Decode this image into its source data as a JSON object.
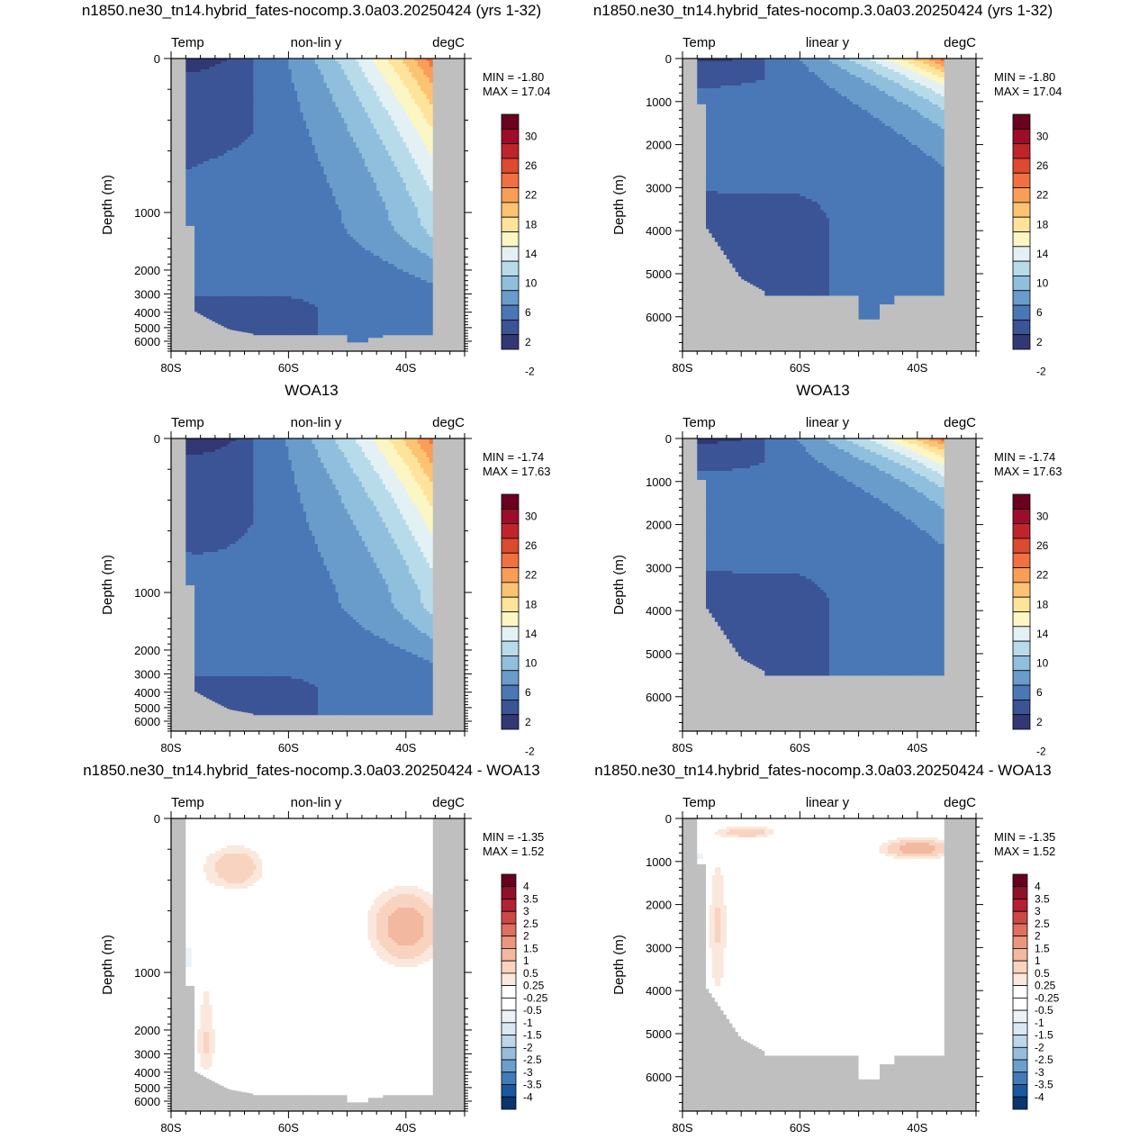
{
  "colors": {
    "land": "#bfbfbf",
    "temp_levels": [
      "#313873",
      "#3b5496",
      "#4a78b6",
      "#6a9ccb",
      "#8fbfdc",
      "#b7dbe9",
      "#e3f1f5",
      "#fbf6c3",
      "#fde49a",
      "#fcc372",
      "#f99e57",
      "#f0713f",
      "#db4a31",
      "#c0242b",
      "#9d0d2a",
      "#6b0020"
    ],
    "diff_levels": [
      "#0a3670",
      "#1a58a2",
      "#3f7dba",
      "#6b9fcd",
      "#97bddc",
      "#bcd6ea",
      "#d9e8f3",
      "#ebf3f9",
      "#ffffff",
      "#ffffff",
      "#fbe8dc",
      "#f8d4c0",
      "#f3b8a0",
      "#eb977f",
      "#de705f",
      "#cc4947",
      "#b52033",
      "#90102b",
      "#67001f"
    ]
  },
  "panels": [
    {
      "name": "model-nonlin",
      "title": "n1850.ne30_tn14.hybrid_fates-nocomp.3.0a03.20250424 (yrs 1-32)",
      "variable": "Temp",
      "ytype": "non-lin y",
      "units": "degC",
      "ylabel": "Depth (m)",
      "min": "MIN =  -1.80",
      "max": "MAX =  17.04",
      "field": "model",
      "scale": "nonlin",
      "colorbar": "temp"
    },
    {
      "name": "model-lin",
      "title": "n1850.ne30_tn14.hybrid_fates-nocomp.3.0a03.20250424 (yrs 1-32)",
      "variable": "Temp",
      "ytype": "linear y",
      "units": "degC",
      "ylabel": "Depth (m)",
      "min": "MIN =  -1.80",
      "max": "MAX =  17.04",
      "field": "model",
      "scale": "linear",
      "colorbar": "temp"
    },
    {
      "name": "obs-nonlin",
      "title": "WOA13",
      "variable": "Temp",
      "ytype": "non-lin y",
      "units": "degC",
      "ylabel": "Depth (m)",
      "min": "MIN =  -1.74",
      "max": "MAX =  17.63",
      "field": "obs",
      "scale": "nonlin",
      "colorbar": "temp"
    },
    {
      "name": "obs-lin",
      "title": "WOA13",
      "variable": "Temp",
      "ytype": "linear y",
      "units": "degC",
      "ylabel": "Depth (m)",
      "min": "MIN =  -1.74",
      "max": "MAX =  17.63",
      "field": "obs",
      "scale": "linear",
      "colorbar": "temp"
    },
    {
      "name": "diff-nonlin",
      "title": "n1850.ne30_tn14.hybrid_fates-nocomp.3.0a03.20250424 - WOA13",
      "variable": "Temp",
      "ytype": "non-lin y",
      "units": "degC",
      "ylabel": "Depth (m)",
      "min": "MIN =  -1.35",
      "max": "MAX =   1.52",
      "field": "diff",
      "scale": "nonlin",
      "colorbar": "diff"
    },
    {
      "name": "diff-lin",
      "title": "n1850.ne30_tn14.hybrid_fates-nocomp.3.0a03.20250424 - WOA13",
      "variable": "Temp",
      "ytype": "linear y",
      "units": "degC",
      "ylabel": "Depth (m)",
      "min": "MIN =  -1.35",
      "max": "MAX =   1.52",
      "field": "diff",
      "scale": "linear",
      "colorbar": "diff"
    }
  ],
  "chart_data": {
    "type": "heatmap",
    "x_axis": {
      "range": [
        "80S",
        "30S"
      ],
      "tick_labels": [
        "80S",
        "60S",
        "40S"
      ],
      "tick_values": [
        -80,
        -60,
        -40
      ]
    },
    "nonlin_y_ticks": [
      0,
      1000,
      2000,
      3000,
      4000,
      5000,
      6000
    ],
    "linear_y_ticks": [
      0,
      1000,
      2000,
      3000,
      4000,
      5000,
      6000
    ],
    "depth_range": [
      0,
      6800
    ],
    "temp_colorbar_labels": [
      "30",
      "26",
      "22",
      "18",
      "14",
      "10",
      "6",
      "2",
      "-2"
    ],
    "diff_colorbar_labels": [
      "4",
      "3.5",
      "3",
      "2.5",
      "2",
      "1.5",
      "1",
      "0.5",
      "0.25",
      "-0.25",
      "-0.5",
      "-1",
      "-1.5",
      "-2",
      "-2.5",
      "-3",
      "-3.5",
      "-4"
    ],
    "ocean_floor": [
      [
        -76,
        3900
      ],
      [
        -74,
        4400
      ],
      [
        -72,
        4900
      ],
      [
        -70,
        5100
      ],
      [
        -66,
        5400
      ],
      [
        -62,
        5500
      ],
      [
        -56,
        5500
      ],
      [
        -48,
        5500
      ],
      [
        -40,
        5500
      ],
      [
        -36,
        5500
      ]
    ],
    "series": [
      {
        "field": "model",
        "surface_temperature_at_latitude": {
          "lat": [
            -78,
            -70,
            -60,
            -50,
            -40,
            -35
          ],
          "value": [
            -1.8,
            -1.0,
            2.5,
            6.0,
            14.5,
            17.04
          ]
        }
      },
      {
        "field": "obs",
        "surface_temperature_at_latitude": {
          "lat": [
            -78,
            -70,
            -60,
            -50,
            -40,
            -35
          ],
          "value": [
            -1.74,
            -1.0,
            2.0,
            5.5,
            15.0,
            17.63
          ]
        }
      },
      {
        "field": "diff",
        "extrema": {
          "min": -1.35,
          "max": 1.52
        }
      }
    ]
  }
}
